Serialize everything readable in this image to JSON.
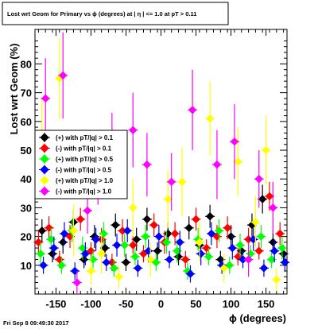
{
  "title": "Lost wrt Geom for Primary vs ϕ (degrees) at | η | <= 1.0 at pT > 0.11",
  "footer": "Fri Sep  8 09:49:30 2017",
  "chart_data": {
    "type": "scatter",
    "title": "Lost wrt Geom for Primary vs ϕ (degrees) at | η | <= 1.0 at pT > 0.11",
    "xlabel": "ϕ (degrees)",
    "ylabel": "Lost wrt Geom (%)",
    "xlim": [
      -180,
      180
    ],
    "ylim": [
      0,
      92
    ],
    "xticks": [
      -150,
      -100,
      -50,
      0,
      50,
      100,
      150
    ],
    "yticks": [
      10,
      20,
      30,
      40,
      50,
      60,
      70,
      80
    ],
    "grid": false,
    "legend_position": "middle-left",
    "series": [
      {
        "name": "(+) with pT/|q| > 0.1",
        "color": "#000000",
        "x": [
          -170,
          -155,
          -140,
          -125,
          -110,
          -95,
          -80,
          -65,
          -50,
          -35,
          -20,
          -5,
          10,
          25,
          40,
          55,
          70,
          85,
          100,
          115,
          130,
          145,
          160,
          175
        ],
        "y": [
          22,
          14,
          18,
          25,
          12,
          20,
          16,
          24,
          11,
          19,
          26,
          15,
          21,
          13,
          23,
          17,
          27,
          12,
          20,
          15,
          24,
          33,
          18,
          14
        ],
        "err": [
          4,
          3,
          4,
          4,
          3,
          4,
          3,
          4,
          3,
          4,
          4,
          3,
          4,
          3,
          4,
          3,
          4,
          3,
          4,
          3,
          4,
          5,
          4,
          3
        ]
      },
      {
        "name": "(-) with pT/|q| > 0.1",
        "color": "#ff0000",
        "x": [
          -175,
          -160,
          -145,
          -130,
          -115,
          -100,
          -85,
          -70,
          -55,
          -40,
          -25,
          -10,
          5,
          20,
          35,
          50,
          65,
          80,
          95,
          110,
          125,
          140,
          155,
          170
        ],
        "y": [
          18,
          23,
          12,
          20,
          26,
          15,
          19,
          11,
          22,
          17,
          14,
          24,
          18,
          21,
          12,
          26,
          16,
          20,
          23,
          13,
          19,
          15,
          34,
          21
        ],
        "err": [
          4,
          4,
          3,
          4,
          4,
          3,
          4,
          3,
          4,
          3,
          3,
          4,
          4,
          4,
          3,
          4,
          3,
          4,
          4,
          3,
          4,
          3,
          5,
          4
        ]
      },
      {
        "name": "(+) with pT/|q| > 0.5",
        "color": "#00ff00",
        "x": [
          -172,
          -157,
          -142,
          -127,
          -112,
          -97,
          -82,
          -67,
          -52,
          -37,
          -22,
          -7,
          8,
          23,
          38,
          53,
          68,
          83,
          98,
          113,
          128,
          143,
          158,
          173
        ],
        "y": [
          14,
          19,
          10,
          22,
          16,
          12,
          21,
          9,
          17,
          13,
          20,
          11,
          18,
          15,
          8,
          19,
          13,
          22,
          10,
          17,
          14,
          20,
          12,
          16
        ],
        "err": [
          4,
          4,
          3,
          4,
          4,
          3,
          4,
          3,
          4,
          3,
          4,
          3,
          4,
          4,
          3,
          4,
          3,
          4,
          3,
          4,
          3,
          4,
          3,
          4
        ]
      },
      {
        "name": "(-) with pT/|q| > 0.5",
        "color": "#0000ff",
        "x": [
          -168,
          -153,
          -138,
          -123,
          -108,
          -93,
          -78,
          -63,
          -48,
          -33,
          -18,
          -3,
          12,
          27,
          42,
          57,
          72,
          87,
          102,
          117,
          132,
          147,
          162,
          177
        ],
        "y": [
          10,
          16,
          21,
          8,
          14,
          19,
          11,
          17,
          22,
          9,
          15,
          20,
          12,
          18,
          7,
          14,
          21,
          10,
          16,
          12,
          19,
          9,
          15,
          11
        ],
        "err": [
          3,
          4,
          4,
          3,
          4,
          4,
          3,
          4,
          4,
          3,
          4,
          4,
          3,
          4,
          3,
          4,
          4,
          3,
          4,
          3,
          4,
          3,
          4,
          3
        ]
      },
      {
        "name": "(+) with pT/|q| > 1.0",
        "color": "#ffff00",
        "x": [
          -170,
          -145,
          -125,
          -100,
          -85,
          -60,
          -40,
          -15,
          10,
          30,
          55,
          70,
          90,
          110,
          135,
          150,
          165
        ],
        "y": [
          56,
          75,
          22,
          8,
          14,
          6,
          30,
          12,
          33,
          39,
          18,
          61,
          9,
          46,
          25,
          50,
          5
        ],
        "err": [
          12,
          14,
          9,
          5,
          7,
          4,
          10,
          6,
          10,
          12,
          7,
          13,
          5,
          12,
          9,
          12,
          4
        ]
      },
      {
        "name": "(-) with pT/|q| > 1.0",
        "color": "#ff00ff",
        "x": [
          -165,
          -140,
          -120,
          -105,
          -90,
          -70,
          -40,
          -20,
          15,
          45,
          80,
          105,
          125,
          140,
          160
        ],
        "y": [
          68,
          76,
          4,
          29,
          40,
          51,
          57,
          45,
          39,
          64,
          45,
          53,
          12,
          40,
          30
        ],
        "err": [
          14,
          15,
          4,
          8,
          9,
          12,
          13,
          11,
          10,
          14,
          12,
          13,
          6,
          10,
          9
        ]
      }
    ]
  }
}
